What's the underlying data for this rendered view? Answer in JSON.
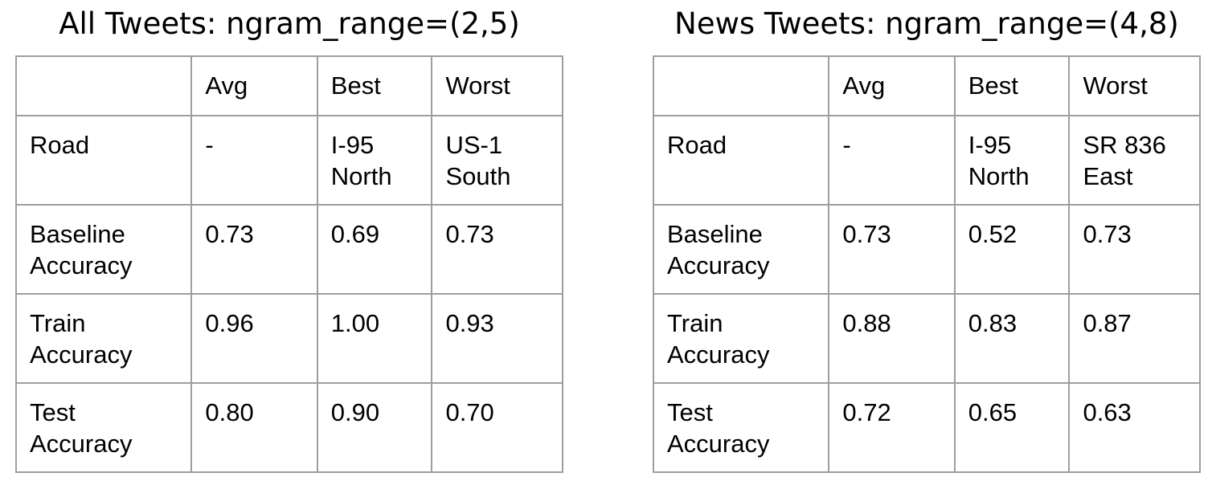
{
  "tables": [
    {
      "title": "All Tweets: ngram_range=(2,5)",
      "header": [
        "",
        "Avg",
        "Best",
        "Worst"
      ],
      "rows": [
        [
          "Road",
          "-",
          "I-95\nNorth",
          "US-1\nSouth"
        ],
        [
          "Baseline\nAccuracy",
          "0.73",
          "0.69",
          "0.73"
        ],
        [
          "Train\nAccuracy",
          "0.96",
          "1.00",
          "0.93"
        ],
        [
          "Test\nAccuracy",
          "0.80",
          "0.90",
          "0.70"
        ]
      ]
    },
    {
      "title": "News Tweets: ngram_range=(4,8)",
      "header": [
        "",
        "Avg",
        "Best",
        "Worst"
      ],
      "rows": [
        [
          "Road",
          "-",
          "I-95\nNorth",
          "SR 836\nEast"
        ],
        [
          "Baseline\nAccuracy",
          "0.73",
          "0.52",
          "0.73"
        ],
        [
          "Train\nAccuracy",
          "0.88",
          "0.83",
          "0.87"
        ],
        [
          "Test\nAccuracy",
          "0.72",
          "0.65",
          "0.63"
        ]
      ]
    }
  ],
  "colors": {
    "border": "#9e9e9e",
    "text": "#000000",
    "background": "#ffffff"
  }
}
